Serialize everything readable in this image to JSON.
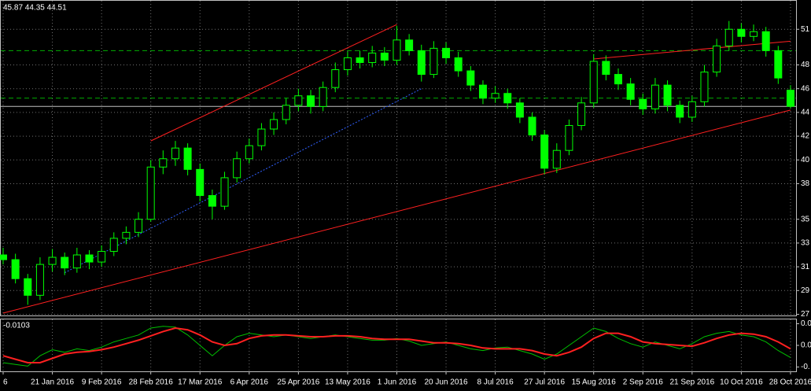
{
  "chart_data": {
    "type": "candlestick",
    "header": "45.87 44.35 44.51",
    "categories": [
      "6",
      null,
      null,
      null,
      "21 Jan 2016",
      null,
      null,
      null,
      "9 Feb 2016",
      null,
      null,
      null,
      "28 Feb 2016",
      null,
      null,
      null,
      "17 Mar 2016",
      null,
      null,
      null,
      "6 Apr 2016",
      null,
      null,
      null,
      "25 Apr 2016",
      null,
      null,
      null,
      "13 May 2016",
      null,
      null,
      null,
      "1 Jun 2016",
      null,
      null,
      null,
      "20 Jun 2016",
      null,
      null,
      null,
      "8 Jul 2016",
      null,
      null,
      null,
      "27 Jul 2016",
      null,
      null,
      null,
      "15 Aug 2016",
      null,
      null,
      null,
      "2 Sep 2016",
      null,
      null,
      null,
      "21 Sep 2016",
      null,
      null,
      null,
      "10 Oct 2016",
      null,
      null,
      null,
      "28 Oct 2016"
    ],
    "ohlc": [
      [
        32.0,
        32.6,
        31.2,
        31.6
      ],
      [
        31.6,
        32.1,
        29.6,
        30.0
      ],
      [
        30.0,
        30.4,
        27.8,
        28.6
      ],
      [
        28.6,
        31.8,
        28.2,
        31.2
      ],
      [
        31.2,
        32.5,
        30.6,
        31.8
      ],
      [
        31.8,
        32.2,
        30.3,
        30.9
      ],
      [
        30.9,
        32.6,
        30.5,
        32.0
      ],
      [
        32.0,
        32.4,
        30.8,
        31.4
      ],
      [
        31.4,
        32.8,
        31.0,
        32.3
      ],
      [
        32.3,
        33.9,
        31.9,
        33.4
      ],
      [
        33.4,
        34.4,
        32.9,
        33.9
      ],
      [
        33.9,
        35.6,
        33.5,
        35.0
      ],
      [
        35.0,
        40.0,
        34.8,
        39.4
      ],
      [
        39.4,
        40.8,
        38.8,
        40.1
      ],
      [
        40.1,
        41.6,
        39.5,
        41.0
      ],
      [
        41.0,
        41.4,
        38.7,
        39.2
      ],
      [
        39.2,
        39.7,
        36.5,
        37.0
      ],
      [
        37.0,
        37.5,
        35.0,
        36.1
      ],
      [
        36.1,
        39.0,
        35.8,
        38.5
      ],
      [
        38.5,
        40.7,
        38.1,
        40.1
      ],
      [
        40.1,
        41.8,
        39.7,
        41.2
      ],
      [
        41.2,
        43.1,
        40.8,
        42.6
      ],
      [
        42.6,
        44.0,
        42.1,
        43.4
      ],
      [
        43.4,
        45.2,
        43.0,
        44.6
      ],
      [
        44.6,
        46.0,
        44.1,
        45.4
      ],
      [
        45.4,
        45.9,
        43.9,
        44.5
      ],
      [
        44.5,
        46.6,
        44.1,
        46.1
      ],
      [
        46.1,
        48.2,
        45.7,
        47.6
      ],
      [
        47.6,
        49.1,
        47.1,
        48.6
      ],
      [
        48.6,
        49.2,
        47.7,
        48.2
      ],
      [
        48.2,
        49.6,
        47.8,
        49.0
      ],
      [
        49.0,
        49.5,
        47.9,
        48.4
      ],
      [
        48.4,
        51.3,
        48.0,
        50.1
      ],
      [
        50.1,
        50.6,
        48.8,
        49.2
      ],
      [
        49.2,
        49.7,
        46.6,
        47.2
      ],
      [
        47.2,
        50.0,
        46.9,
        49.4
      ],
      [
        49.4,
        49.9,
        48.1,
        48.6
      ],
      [
        48.6,
        49.1,
        47.0,
        47.5
      ],
      [
        47.5,
        47.9,
        45.8,
        46.3
      ],
      [
        46.3,
        46.7,
        44.7,
        45.2
      ],
      [
        45.2,
        46.2,
        44.8,
        45.6
      ],
      [
        45.6,
        46.0,
        44.3,
        44.8
      ],
      [
        44.8,
        45.2,
        43.1,
        43.6
      ],
      [
        43.6,
        44.0,
        41.6,
        42.1
      ],
      [
        42.1,
        42.5,
        38.8,
        39.3
      ],
      [
        39.3,
        41.4,
        38.9,
        40.8
      ],
      [
        40.8,
        43.4,
        40.4,
        42.9
      ],
      [
        42.9,
        45.3,
        42.5,
        44.8
      ],
      [
        44.8,
        48.9,
        44.4,
        48.3
      ],
      [
        48.3,
        48.8,
        46.7,
        47.2
      ],
      [
        47.2,
        47.7,
        45.9,
        46.4
      ],
      [
        46.4,
        46.9,
        44.6,
        45.1
      ],
      [
        45.1,
        45.6,
        43.8,
        44.3
      ],
      [
        44.3,
        46.9,
        43.9,
        46.3
      ],
      [
        46.3,
        46.7,
        44.1,
        44.6
      ],
      [
        44.6,
        45.0,
        43.1,
        43.6
      ],
      [
        43.6,
        45.4,
        43.2,
        44.9
      ],
      [
        44.9,
        48.0,
        44.5,
        47.4
      ],
      [
        47.4,
        50.2,
        47.0,
        49.6
      ],
      [
        49.6,
        51.7,
        49.2,
        51.0
      ],
      [
        51.0,
        51.5,
        49.9,
        50.4
      ],
      [
        50.4,
        51.4,
        50.0,
        50.8
      ],
      [
        50.8,
        51.2,
        48.7,
        49.2
      ],
      [
        49.2,
        49.6,
        46.4,
        46.9
      ],
      [
        45.87,
        46.3,
        44.35,
        44.51
      ]
    ],
    "up_color": "#000000",
    "down_color": "#00ff00",
    "outline_color": "#00ff00",
    "ylim": [
      26.9,
      53.4
    ],
    "yticks": [
      27,
      29,
      31,
      33,
      35,
      38,
      40,
      42,
      44,
      46,
      48,
      51
    ],
    "grid": true,
    "trendlines": [
      {
        "x": [
          0,
          64
        ],
        "y": [
          27.1,
          44.2
        ],
        "color": "#ff2020",
        "dash": false
      },
      {
        "x": [
          12,
          32
        ],
        "y": [
          41.6,
          51.4
        ],
        "color": "#ff2020",
        "dash": false
      },
      {
        "x": [
          48,
          64
        ],
        "y": [
          48.5,
          50.0
        ],
        "color": "#ff2020",
        "dash": false
      },
      {
        "x": [
          5,
          34
        ],
        "y": [
          30.5,
          46.0
        ],
        "color": "#3060ff",
        "dash": true
      }
    ],
    "hlines": [
      {
        "value": 49.2,
        "color": "#00b000",
        "dash": true
      },
      {
        "value": 45.2,
        "color": "#00b000",
        "dash": true
      },
      {
        "value": 44.51,
        "color": "#c0c0c0",
        "dash": false
      }
    ],
    "indicator": {
      "label": "-0.0103",
      "ylim": [
        -0.03,
        0.03
      ],
      "yticks": [
        {
          "value": 0.025,
          "label": "0.0"
        },
        {
          "value": 0.0,
          "label": "0.0"
        },
        {
          "value": -0.025,
          "label": "-0."
        }
      ],
      "series": [
        {
          "color": "#00c000",
          "values": [
            -0.02,
            -0.022,
            -0.024,
            -0.012,
            -0.005,
            -0.008,
            -0.004,
            -0.006,
            -0.002,
            0.004,
            0.008,
            0.012,
            0.02,
            0.022,
            0.021,
            0.012,
            0.0,
            -0.012,
            0.0,
            0.01,
            0.014,
            0.012,
            0.01,
            0.012,
            0.01,
            0.008,
            0.01,
            0.012,
            0.01,
            0.008,
            0.006,
            0.006,
            0.008,
            0.005,
            0.0,
            0.002,
            0.004,
            0.0,
            -0.004,
            -0.006,
            -0.003,
            -0.002,
            -0.006,
            -0.01,
            -0.016,
            -0.01,
            0.0,
            0.01,
            0.02,
            0.016,
            0.008,
            0.002,
            -0.002,
            0.004,
            0.0,
            -0.004,
            0.002,
            0.01,
            0.014,
            0.016,
            0.012,
            0.01,
            0.004,
            -0.006,
            -0.014
          ]
        },
        {
          "color": "#ff2020",
          "values": [
            -0.012,
            -0.016,
            -0.02,
            -0.02,
            -0.015,
            -0.01,
            -0.008,
            -0.007,
            -0.005,
            -0.002,
            0.002,
            0.006,
            0.011,
            0.016,
            0.02,
            0.018,
            0.012,
            0.004,
            0.0,
            0.002,
            0.008,
            0.011,
            0.012,
            0.012,
            0.011,
            0.01,
            0.01,
            0.011,
            0.011,
            0.01,
            0.008,
            0.007,
            0.007,
            0.007,
            0.005,
            0.003,
            0.003,
            0.002,
            0.0,
            -0.003,
            -0.004,
            -0.004,
            -0.004,
            -0.006,
            -0.01,
            -0.012,
            -0.008,
            -0.002,
            0.008,
            0.014,
            0.014,
            0.01,
            0.004,
            0.002,
            0.001,
            0.0,
            -0.001,
            0.003,
            0.008,
            0.012,
            0.014,
            0.013,
            0.01,
            0.004,
            -0.004
          ]
        }
      ]
    }
  }
}
